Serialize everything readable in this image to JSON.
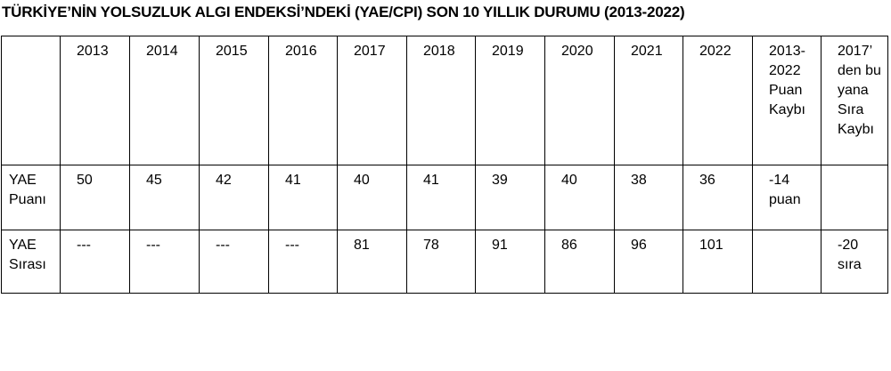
{
  "title": "TÜRKİYE’NİN YOLSUZLUK ALGI ENDEKSİ’NDEKİ (YAE/CPI) SON 10 YILLIK DURUMU (2013-2022)",
  "table": {
    "header": [
      null,
      "2013",
      "2014",
      "2015",
      "2016",
      "2017",
      "2018",
      "2019",
      "2020",
      "2021",
      "2022",
      "2013-2022 Puan Kaybı",
      "2017’ den bu yana Sıra Kaybı"
    ],
    "rows": [
      [
        "YAE Puanı",
        50,
        45,
        42,
        41,
        40,
        41,
        39,
        40,
        38,
        36,
        "-14 puan",
        null
      ],
      [
        "YAE Sırası",
        "---",
        "---",
        "---",
        "---",
        81,
        78,
        91,
        86,
        96,
        101,
        null,
        "-20 sıra"
      ]
    ]
  }
}
